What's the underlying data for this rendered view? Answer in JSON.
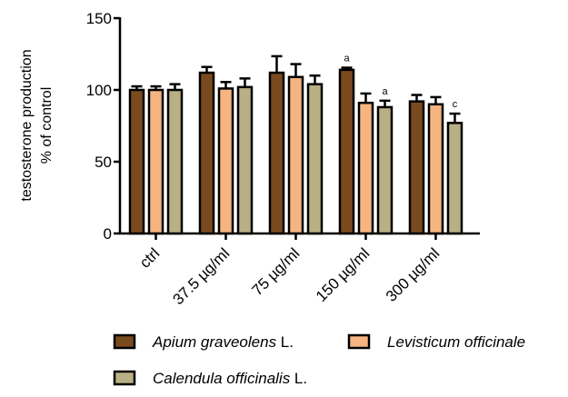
{
  "chart_data": {
    "type": "bar",
    "categories": [
      "ctrl",
      "37.5 µg/ml",
      "75 µg/ml",
      "150 µg/ml",
      "300 µg/ml"
    ],
    "ylabel_lines": [
      "testosterone production",
      "% of control"
    ],
    "ylim": [
      0,
      150
    ],
    "yticks": [
      0,
      50,
      100,
      150
    ],
    "series": [
      {
        "name_italic": "Apium graveolens",
        "name_suffix": " L.",
        "color": "#7a4a1f",
        "values": [
          100,
          112,
          112,
          114,
          92
        ],
        "errors": [
          2.5,
          4,
          11.5,
          1.5,
          4.5
        ],
        "sig": [
          "",
          "",
          "",
          "a",
          ""
        ]
      },
      {
        "name_italic": "Levisticum officinale",
        "name_suffix": "",
        "color": "#f5b480",
        "values": [
          100,
          101,
          109,
          91,
          90
        ],
        "errors": [
          2.5,
          4.5,
          9,
          6.5,
          5
        ],
        "sig": [
          "",
          "",
          "",
          "",
          ""
        ]
      },
      {
        "name_italic": "Calendula officinalis",
        "name_suffix": " L.",
        "color": "#b8b084",
        "values": [
          100,
          102,
          104,
          88,
          77
        ],
        "errors": [
          4,
          6,
          6,
          4.5,
          6.5
        ],
        "sig": [
          "",
          "",
          "",
          "a",
          "c"
        ]
      }
    ],
    "legend_position": "bottom",
    "grid": false
  }
}
